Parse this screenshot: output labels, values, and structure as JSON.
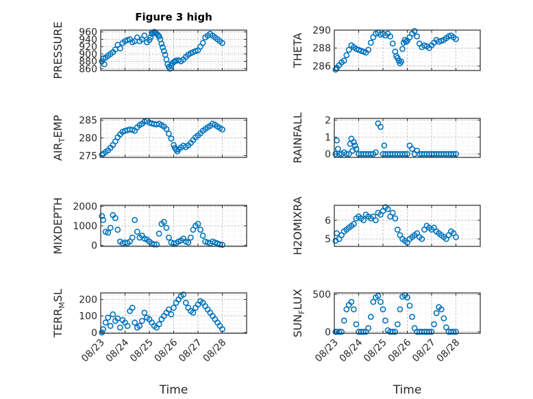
{
  "title": "Figure 3 high",
  "colors": {
    "marker": "#0072BD",
    "axis": "#262626",
    "grid": "#b8b8b8"
  },
  "chart_data": [
    {
      "type": "scatter",
      "ylabel": "PRESSURE",
      "ylim": [
        855,
        965
      ],
      "yticks": [
        860,
        880,
        900,
        920,
        940,
        960
      ],
      "x": [
        0.05,
        0.1,
        0.15,
        0.2,
        0.3,
        0.4,
        0.5,
        0.6,
        0.7,
        0.8,
        0.9,
        1.0,
        1.1,
        1.2,
        1.3,
        1.4,
        1.5,
        1.6,
        1.7,
        1.8,
        1.9,
        2.0,
        2.05,
        2.1,
        2.15,
        2.2,
        2.25,
        2.3,
        2.35,
        2.4,
        2.45,
        2.5,
        2.55,
        2.6,
        2.65,
        2.7,
        2.75,
        2.8,
        2.85,
        2.9,
        2.95,
        3.0,
        3.05,
        3.1,
        3.2,
        3.3,
        3.4,
        3.5,
        3.6,
        3.7,
        3.8,
        3.9,
        4.0,
        4.1,
        4.2,
        4.3,
        4.4,
        4.5,
        4.6,
        4.7,
        4.8,
        4.9,
        5.0
      ],
      "y": [
        880,
        888,
        872,
        890,
        895,
        900,
        905,
        912,
        925,
        915,
        930,
        935,
        938,
        940,
        932,
        935,
        945,
        935,
        940,
        950,
        932,
        938,
        945,
        955,
        958,
        960,
        958,
        955,
        952,
        948,
        940,
        928,
        918,
        908,
        898,
        885,
        872,
        865,
        860,
        868,
        875,
        878,
        880,
        882,
        883,
        880,
        885,
        892,
        898,
        902,
        905,
        908,
        910,
        920,
        930,
        945,
        950,
        955,
        950,
        945,
        940,
        935,
        930
      ]
    },
    {
      "type": "scatter",
      "ylabel": "THETA",
      "ylim": [
        285.5,
        290
      ],
      "yticks": [
        286,
        288,
        290
      ],
      "x": [
        0.05,
        0.1,
        0.2,
        0.3,
        0.4,
        0.5,
        0.6,
        0.7,
        0.8,
        0.9,
        1.0,
        1.1,
        1.2,
        1.3,
        1.4,
        1.5,
        1.6,
        1.7,
        1.8,
        1.9,
        2.0,
        2.1,
        2.2,
        2.3,
        2.4,
        2.5,
        2.55,
        2.6,
        2.65,
        2.7,
        2.75,
        2.8,
        2.85,
        2.9,
        2.95,
        3.0,
        3.1,
        3.2,
        3.3,
        3.4,
        3.5,
        3.6,
        3.7,
        3.8,
        3.9,
        4.0,
        4.1,
        4.2,
        4.3,
        4.4,
        4.5,
        4.6,
        4.7,
        4.8,
        4.9,
        5.0
      ],
      "y": [
        285.6,
        285.8,
        286.1,
        286.4,
        286.6,
        287.2,
        287.8,
        288.3,
        288.1,
        287.9,
        287.8,
        287.7,
        287.6,
        287.5,
        287.8,
        288.6,
        289.2,
        289.6,
        289.7,
        289.5,
        289.6,
        289.4,
        289.6,
        289.3,
        288.5,
        287.6,
        287.1,
        286.9,
        286.6,
        286.3,
        286.5,
        287.9,
        288.6,
        288.9,
        288.7,
        288.8,
        289.2,
        289.6,
        289.9,
        289.3,
        288.5,
        288.1,
        288.3,
        288.2,
        288.0,
        288.3,
        288.6,
        288.9,
        288.7,
        288.8,
        288.9,
        289.1,
        289.3,
        289.4,
        289.2,
        289.0
      ]
    },
    {
      "type": "scatter",
      "ylabel": "AIR_TEMP",
      "ylim": [
        274.5,
        285.5
      ],
      "yticks": [
        275,
        280,
        285
      ],
      "x": [
        0.05,
        0.1,
        0.2,
        0.3,
        0.4,
        0.5,
        0.6,
        0.7,
        0.8,
        0.9,
        1.0,
        1.1,
        1.2,
        1.3,
        1.4,
        1.5,
        1.6,
        1.7,
        1.8,
        1.9,
        2.0,
        2.1,
        2.2,
        2.3,
        2.4,
        2.5,
        2.6,
        2.7,
        2.8,
        2.9,
        3.0,
        3.05,
        3.1,
        3.15,
        3.2,
        3.3,
        3.4,
        3.5,
        3.6,
        3.7,
        3.8,
        3.9,
        4.0,
        4.1,
        4.2,
        4.3,
        4.4,
        4.5,
        4.6,
        4.7,
        4.8,
        4.9,
        5.0
      ],
      "y": [
        275.2,
        275.5,
        276.0,
        276.5,
        277.2,
        278.0,
        279.0,
        280.2,
        281.0,
        281.7,
        282.0,
        282.2,
        282.4,
        282.3,
        282.0,
        283.0,
        283.6,
        284.0,
        284.6,
        284.8,
        284.3,
        284.1,
        283.9,
        283.8,
        284.0,
        283.6,
        283.2,
        282.5,
        281.2,
        279.8,
        278.0,
        277.2,
        276.7,
        276.2,
        276.8,
        277.3,
        277.8,
        277.4,
        277.9,
        278.6,
        279.4,
        280.2,
        280.7,
        281.3,
        282.0,
        282.5,
        283.0,
        283.4,
        284.0,
        283.7,
        283.2,
        282.8,
        282.4
      ]
    },
    {
      "type": "scatter",
      "ylabel": "RAINFALL",
      "ylim": [
        -0.2,
        2.1
      ],
      "yticks": [
        0,
        1,
        2
      ],
      "x": [
        0.05,
        0.1,
        0.15,
        0.2,
        0.3,
        0.4,
        0.5,
        0.6,
        0.65,
        0.7,
        0.75,
        0.8,
        0.85,
        0.9,
        1.0,
        1.1,
        1.2,
        1.3,
        1.4,
        1.5,
        1.6,
        1.7,
        1.8,
        1.9,
        2.0,
        2.05,
        2.1,
        2.2,
        2.3,
        2.4,
        2.5,
        2.6,
        2.7,
        2.8,
        2.9,
        3.0,
        3.1,
        3.2,
        3.3,
        3.4,
        3.5,
        3.6,
        3.7,
        3.8,
        3.9,
        4.0,
        4.1,
        4.2,
        4.3,
        4.4,
        4.5,
        4.6,
        4.7,
        4.8,
        4.9,
        5.0
      ],
      "y": [
        0.0,
        0.8,
        0.3,
        0.0,
        0.0,
        0.1,
        0.0,
        0.0,
        0.6,
        0.9,
        0.2,
        0.7,
        0.5,
        0.3,
        0.0,
        0.0,
        0.0,
        0.0,
        0.0,
        0.0,
        0.0,
        0.1,
        1.8,
        1.6,
        0.0,
        0.5,
        0.0,
        0.0,
        0.0,
        0.0,
        0.0,
        0.0,
        0.0,
        0.0,
        0.0,
        0.0,
        0.5,
        0.3,
        0.0,
        0.2,
        0.0,
        0.0,
        0.0,
        0.0,
        0.0,
        0.0,
        0.0,
        0.0,
        0.0,
        0.0,
        0.0,
        0.0,
        0.0,
        0.0,
        0.0,
        0.0
      ]
    },
    {
      "type": "scatter",
      "ylabel": "MIXDEPTH",
      "ylim": [
        -50,
        2050
      ],
      "yticks": [
        0,
        1000,
        2000
      ],
      "x": [
        0.05,
        0.1,
        0.2,
        0.3,
        0.4,
        0.5,
        0.6,
        0.7,
        0.8,
        0.9,
        1.0,
        1.1,
        1.2,
        1.3,
        1.4,
        1.5,
        1.6,
        1.7,
        1.8,
        1.9,
        2.0,
        2.1,
        2.2,
        2.3,
        2.4,
        2.5,
        2.6,
        2.7,
        2.8,
        2.9,
        3.0,
        3.1,
        3.2,
        3.3,
        3.4,
        3.5,
        3.6,
        3.7,
        3.8,
        3.9,
        4.0,
        4.1,
        4.2,
        4.3,
        4.4,
        4.5,
        4.6,
        4.7,
        4.8,
        4.9,
        5.0
      ],
      "y": [
        1500,
        1300,
        700,
        650,
        900,
        1550,
        1400,
        800,
        200,
        100,
        150,
        120,
        200,
        400,
        1300,
        700,
        400,
        500,
        350,
        300,
        200,
        100,
        50,
        50,
        600,
        1100,
        1200,
        900,
        400,
        150,
        100,
        120,
        200,
        250,
        350,
        200,
        150,
        400,
        800,
        1000,
        1100,
        800,
        500,
        200,
        150,
        100,
        200,
        150,
        100,
        50,
        30
      ]
    },
    {
      "type": "scatter",
      "ylabel": "H2OMIXRA",
      "ylim": [
        4.6,
        6.8
      ],
      "yticks": [
        5,
        6
      ],
      "x": [
        0.05,
        0.1,
        0.2,
        0.3,
        0.4,
        0.5,
        0.6,
        0.7,
        0.8,
        0.9,
        1.0,
        1.1,
        1.2,
        1.3,
        1.4,
        1.5,
        1.6,
        1.7,
        1.8,
        1.9,
        2.0,
        2.1,
        2.2,
        2.3,
        2.4,
        2.5,
        2.6,
        2.7,
        2.8,
        2.9,
        3.0,
        3.1,
        3.2,
        3.3,
        3.4,
        3.5,
        3.6,
        3.7,
        3.8,
        3.9,
        4.0,
        4.1,
        4.2,
        4.3,
        4.4,
        4.5,
        4.6,
        4.7,
        4.8,
        4.9,
        5.0
      ],
      "y": [
        4.9,
        5.3,
        5.0,
        5.2,
        5.4,
        5.5,
        5.6,
        5.7,
        5.8,
        6.1,
        6.2,
        6.1,
        6.0,
        6.3,
        6.2,
        6.1,
        6.2,
        6.0,
        6.4,
        6.3,
        6.5,
        6.7,
        6.6,
        6.2,
        6.4,
        6.1,
        5.5,
        5.2,
        5.0,
        4.9,
        4.8,
        5.0,
        5.1,
        5.2,
        5.3,
        5.1,
        5.0,
        5.5,
        5.7,
        5.6,
        5.5,
        5.6,
        5.4,
        5.3,
        5.2,
        5.1,
        5.0,
        5.2,
        5.4,
        5.3,
        5.1
      ]
    },
    {
      "type": "scatter",
      "ylabel": "TERR_MSL",
      "ylim": [
        -5,
        240
      ],
      "yticks": [
        0,
        100,
        200
      ],
      "x": [
        0.05,
        0.1,
        0.2,
        0.3,
        0.4,
        0.5,
        0.6,
        0.7,
        0.8,
        0.9,
        1.0,
        1.1,
        1.2,
        1.3,
        1.4,
        1.5,
        1.6,
        1.7,
        1.8,
        1.9,
        2.0,
        2.1,
        2.2,
        2.3,
        2.4,
        2.5,
        2.6,
        2.7,
        2.8,
        2.9,
        3.0,
        3.1,
        3.2,
        3.3,
        3.4,
        3.5,
        3.6,
        3.7,
        3.8,
        3.9,
        4.0,
        4.1,
        4.2,
        4.3,
        4.4,
        4.5,
        4.6,
        4.7,
        4.8,
        4.9,
        5.0
      ],
      "y": [
        0,
        20,
        60,
        90,
        40,
        110,
        70,
        85,
        30,
        75,
        60,
        40,
        130,
        150,
        60,
        30,
        40,
        70,
        120,
        90,
        80,
        60,
        40,
        30,
        50,
        80,
        100,
        120,
        140,
        110,
        150,
        180,
        200,
        220,
        230,
        180,
        150,
        130,
        120,
        150,
        170,
        190,
        180,
        160,
        140,
        120,
        100,
        80,
        60,
        40,
        20
      ]
    },
    {
      "type": "scatter",
      "ylabel": "SUN_FLUX",
      "ylim": [
        -20,
        520
      ],
      "yticks": [
        0,
        500
      ],
      "x": [
        0.05,
        0.1,
        0.2,
        0.3,
        0.4,
        0.5,
        0.6,
        0.7,
        0.8,
        0.9,
        1.0,
        1.1,
        1.2,
        1.3,
        1.4,
        1.5,
        1.6,
        1.7,
        1.8,
        1.9,
        2.0,
        2.1,
        2.2,
        2.3,
        2.4,
        2.5,
        2.6,
        2.7,
        2.8,
        2.9,
        3.0,
        3.1,
        3.2,
        3.3,
        3.4,
        3.5,
        3.6,
        3.7,
        3.8,
        3.9,
        4.0,
        4.1,
        4.2,
        4.3,
        4.4,
        4.5,
        4.6,
        4.7,
        4.8,
        4.9,
        5.0
      ],
      "y": [
        0,
        0,
        0,
        0,
        150,
        300,
        360,
        400,
        300,
        100,
        0,
        0,
        0,
        0,
        50,
        200,
        400,
        460,
        480,
        400,
        300,
        150,
        20,
        0,
        0,
        0,
        100,
        300,
        470,
        490,
        460,
        350,
        200,
        50,
        0,
        0,
        0,
        0,
        0,
        0,
        0,
        100,
        250,
        330,
        300,
        180,
        60,
        0,
        0,
        0,
        0
      ]
    }
  ],
  "xaxis": {
    "label": "Time",
    "ticks": [
      "08/23",
      "08/24",
      "08/25",
      "08/26",
      "08/27",
      "08/28"
    ],
    "xlim": [
      0,
      6
    ]
  }
}
